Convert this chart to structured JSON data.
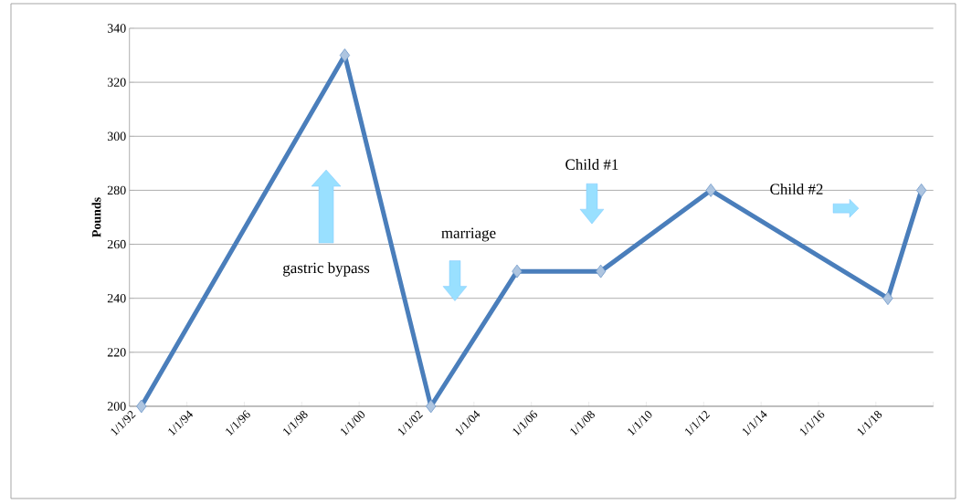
{
  "chart_data": {
    "type": "line",
    "ylabel": "Pounds",
    "x": [
      "1992-06",
      "1999-07",
      "2002-07",
      "2005-07",
      "2008-06",
      "2012-04",
      "2018-06",
      "2019-08"
    ],
    "series": [
      {
        "color": "#4a7ebb",
        "values": [
          200,
          330,
          200,
          250,
          250,
          280,
          240,
          280
        ]
      }
    ],
    "xlim": [
      "1992-01-01",
      "2020-01-01"
    ],
    "xticks": [
      {
        "value": "1992-01-01",
        "label": "1/1/92"
      },
      {
        "value": "1994-01-01",
        "label": "1/1/94"
      },
      {
        "value": "1996-01-01",
        "label": "1/1/96"
      },
      {
        "value": "1998-01-01",
        "label": "1/1/98"
      },
      {
        "value": "2000-01-01",
        "label": "1/1/00"
      },
      {
        "value": "2002-01-01",
        "label": "1/1/02"
      },
      {
        "value": "2004-01-01",
        "label": "1/1/04"
      },
      {
        "value": "2006-01-01",
        "label": "1/1/06"
      },
      {
        "value": "2008-01-01",
        "label": "1/1/08"
      },
      {
        "value": "2010-01-01",
        "label": "1/1/10"
      },
      {
        "value": "2012-01-01",
        "label": "1/1/12"
      },
      {
        "value": "2014-01-01",
        "label": "1/1/14"
      },
      {
        "value": "2016-01-01",
        "label": "1/1/16"
      },
      {
        "value": "2018-01-01",
        "label": "1/1/18"
      },
      {
        "value": "2020-01-01",
        "label": null
      }
    ],
    "ylim": [
      200,
      340
    ],
    "yticks": [
      200,
      220,
      240,
      260,
      280,
      300,
      320,
      340
    ],
    "grid": "y",
    "marker": "diamond",
    "line_style": "solid",
    "annotations": [
      "gastric bypass",
      "marriage",
      "Child #1",
      "Child #2"
    ]
  }
}
